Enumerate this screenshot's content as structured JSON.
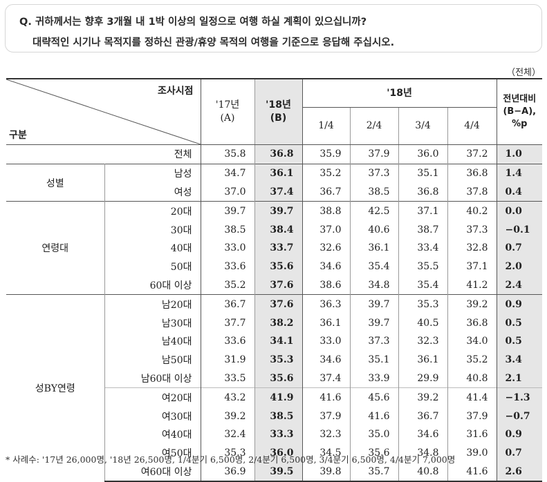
{
  "question": {
    "line1": "Q. 귀하께서는 향후 3개월 내 1박 이상의 일정으로 여행 하실 계획이 있으십니까?",
    "line2": "대략적인 시기나 목적지를 정하신 관광/휴양 목적의 여행을 기준으로 응답해 주십시오."
  },
  "unit_label": "（전체）",
  "header": {
    "diag_top": "조사시점",
    "diag_bottom": "구분",
    "col17": "'17년",
    "col17_sub": "(A)",
    "col18": "'18년",
    "col18_sub": "(B)",
    "quarter_group": "'18년",
    "q1": "1/4",
    "q2": "2/4",
    "q3": "3/4",
    "q4": "4/4",
    "diff_l1": "전년대비",
    "diff_l2": "(B−A),",
    "diff_l3": "%p"
  },
  "groups": {
    "gender": "성별",
    "age": "연령대",
    "genderage": "성BY연령"
  },
  "rows": [
    {
      "label": "전체",
      "a": "35.8",
      "b": "36.8",
      "q1": "35.9",
      "q2": "37.9",
      "q3": "36.0",
      "q4": "37.2",
      "d": "1.0"
    },
    {
      "label": "남성",
      "a": "34.7",
      "b": "36.1",
      "q1": "35.2",
      "q2": "37.3",
      "q3": "35.1",
      "q4": "36.8",
      "d": "1.4"
    },
    {
      "label": "여성",
      "a": "37.0",
      "b": "37.4",
      "q1": "36.7",
      "q2": "38.5",
      "q3": "36.8",
      "q4": "37.8",
      "d": "0.4"
    },
    {
      "label": "20대",
      "a": "39.7",
      "b": "39.7",
      "q1": "38.8",
      "q2": "42.5",
      "q3": "37.1",
      "q4": "40.2",
      "d": "0.0"
    },
    {
      "label": "30대",
      "a": "38.5",
      "b": "38.4",
      "q1": "37.0",
      "q2": "40.6",
      "q3": "38.7",
      "q4": "37.3",
      "d": "−0.1"
    },
    {
      "label": "40대",
      "a": "33.0",
      "b": "33.7",
      "q1": "32.6",
      "q2": "36.1",
      "q3": "33.4",
      "q4": "32.8",
      "d": "0.7"
    },
    {
      "label": "50대",
      "a": "33.6",
      "b": "35.6",
      "q1": "34.6",
      "q2": "35.4",
      "q3": "35.5",
      "q4": "37.1",
      "d": "2.0"
    },
    {
      "label": "60대 이상",
      "a": "35.2",
      "b": "37.6",
      "q1": "38.6",
      "q2": "34.8",
      "q3": "35.4",
      "q4": "41.2",
      "d": "2.4"
    },
    {
      "label": "남20대",
      "a": "36.7",
      "b": "37.6",
      "q1": "36.3",
      "q2": "39.7",
      "q3": "35.3",
      "q4": "39.2",
      "d": "0.9"
    },
    {
      "label": "남30대",
      "a": "37.7",
      "b": "38.2",
      "q1": "36.1",
      "q2": "39.7",
      "q3": "40.5",
      "q4": "36.8",
      "d": "0.5"
    },
    {
      "label": "남40대",
      "a": "33.6",
      "b": "34.1",
      "q1": "33.0",
      "q2": "37.3",
      "q3": "32.3",
      "q4": "34.0",
      "d": "0.5"
    },
    {
      "label": "남50대",
      "a": "31.9",
      "b": "35.3",
      "q1": "34.6",
      "q2": "35.1",
      "q3": "36.1",
      "q4": "35.2",
      "d": "3.4"
    },
    {
      "label": "남60대 이상",
      "a": "33.5",
      "b": "35.6",
      "q1": "37.4",
      "q2": "33.9",
      "q3": "29.9",
      "q4": "40.8",
      "d": "2.1"
    },
    {
      "label": "여20대",
      "a": "43.2",
      "b": "41.9",
      "q1": "41.6",
      "q2": "45.6",
      "q3": "39.2",
      "q4": "41.4",
      "d": "−1.3"
    },
    {
      "label": "여30대",
      "a": "39.2",
      "b": "38.5",
      "q1": "37.9",
      "q2": "41.6",
      "q3": "36.7",
      "q4": "37.9",
      "d": "−0.7"
    },
    {
      "label": "여40대",
      "a": "32.4",
      "b": "33.3",
      "q1": "32.3",
      "q2": "35.0",
      "q3": "34.6",
      "q4": "31.6",
      "d": "0.9"
    },
    {
      "label": "여50대",
      "a": "35.3",
      "b": "36.0",
      "q1": "34.5",
      "q2": "35.6",
      "q3": "34.8",
      "q4": "39.0",
      "d": "0.7"
    },
    {
      "label": "여60대 이상",
      "a": "36.9",
      "b": "39.5",
      "q1": "39.8",
      "q2": "35.7",
      "q3": "40.8",
      "q4": "41.6",
      "d": "2.6"
    }
  ],
  "footnote": "* 사례수: '17년 26,000명, '18년 26,500명, 1/4분기 6,500명, 2/4분기 6,500명, 3/4분기 6,500명, 4/4분기 7,000명"
}
